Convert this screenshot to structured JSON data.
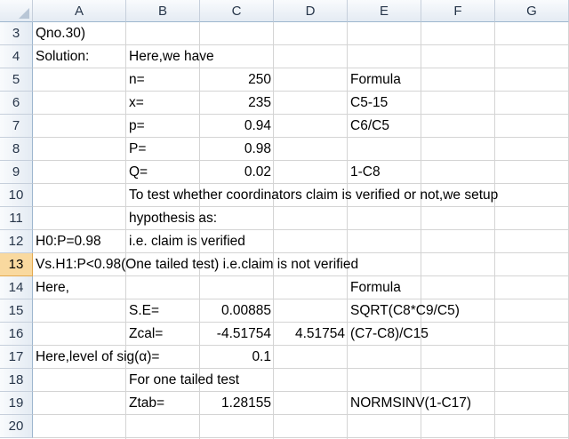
{
  "columns": [
    "A",
    "B",
    "C",
    "D",
    "E",
    "F",
    "G"
  ],
  "rows": [
    "3",
    "4",
    "5",
    "6",
    "7",
    "8",
    "9",
    "10",
    "11",
    "12",
    "13",
    "14",
    "15",
    "16",
    "17",
    "18",
    "19",
    "20"
  ],
  "selected_row": "13",
  "cells": {
    "A3": "Qno.30)",
    "A4": "Solution:",
    "B4": "Here,we have",
    "B5": "n=",
    "C5": "250",
    "E5": "Formula",
    "B6": "x=",
    "C6": "235",
    "E6": "C5-15",
    "B7": "p=",
    "C7": "0.94",
    "E7": "C6/C5",
    "B8": "P=",
    "C8": "0.98",
    "B9": "Q=",
    "C9": "0.02",
    "E9": "1-C8",
    "B10": "To test whether coordinators claim is verified or not,we setup",
    "B11": "hypothesis as:",
    "A12": "H0:P=0.98",
    "B12": "i.e. claim is verified",
    "A13": "Vs.H1:P<0.98(One tailed test) i.e.claim is not verified",
    "A14": "Here,",
    "E14": "Formula",
    "B15": "S.E=",
    "C15": "0.00885",
    "E15": "SQRT(C8*C9/C5)",
    "B16": "Zcal=",
    "C16": "-4.51754",
    "D16": "4.51754",
    "E16": "(C7-C8)/C15",
    "A17": "Here,level of sig(α)=",
    "C17": "0.1",
    "B18": "For one tailed test",
    "B19": "Ztab=",
    "C19": "1.28155",
    "E19": "NORMSINV(1-C17)"
  }
}
